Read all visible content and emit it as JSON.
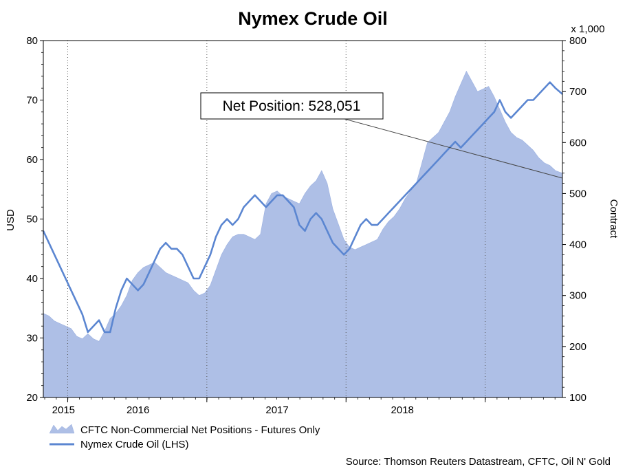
{
  "chart_data": {
    "type": "line",
    "title": "Nymex Crude Oil",
    "y_left_label": "USD",
    "y_right_label": "Contract",
    "y_right_multiplier": "x 1,000",
    "y_left_ticks": [
      "80",
      "70",
      "60",
      "50",
      "40",
      "30",
      "20"
    ],
    "y_right_ticks": [
      "800",
      "700",
      "600",
      "500",
      "400",
      "300",
      "200",
      "100"
    ],
    "x_ticks": [
      "2015",
      "2016",
      "2017",
      "2018"
    ],
    "ylim_left": [
      20,
      80
    ],
    "ylim_right": [
      100,
      800
    ],
    "x_range": [
      2014.82,
      2018.55
    ],
    "grid": "dotted vertical at year boundaries",
    "annotation": "Net Position: 528,051",
    "source": "Source: Thomson Reuters Datastream, CFTC, Oil N' Gold",
    "series": [
      {
        "name": "CFTC Non-Commercial Net Positions - Futures Only",
        "axis": "right",
        "style": "area",
        "color": "#aebfe6",
        "x": [
          2014.82,
          2014.86,
          2014.9,
          2014.94,
          2014.98,
          2015.02,
          2015.06,
          2015.1,
          2015.14,
          2015.18,
          2015.22,
          2015.26,
          2015.3,
          2015.34,
          2015.38,
          2015.42,
          2015.46,
          2015.5,
          2015.54,
          2015.58,
          2015.62,
          2015.66,
          2015.7,
          2015.74,
          2015.78,
          2015.82,
          2015.86,
          2015.9,
          2015.94,
          2015.98,
          2016.02,
          2016.06,
          2016.1,
          2016.14,
          2016.18,
          2016.22,
          2016.26,
          2016.3,
          2016.34,
          2016.38,
          2016.42,
          2016.46,
          2016.5,
          2016.54,
          2016.58,
          2016.62,
          2016.66,
          2016.7,
          2016.74,
          2016.78,
          2016.82,
          2016.86,
          2016.9,
          2016.94,
          2016.98,
          2017.02,
          2017.06,
          2017.1,
          2017.14,
          2017.18,
          2017.22,
          2017.26,
          2017.3,
          2017.34,
          2017.38,
          2017.42,
          2017.46,
          2017.5,
          2017.54,
          2017.58,
          2017.62,
          2017.66,
          2017.7,
          2017.74,
          2017.78,
          2017.82,
          2017.86,
          2017.9,
          2017.94,
          2017.98,
          2018.02,
          2018.06,
          2018.1,
          2018.14,
          2018.18,
          2018.22,
          2018.26,
          2018.3,
          2018.34,
          2018.38,
          2018.42,
          2018.46,
          2018.5,
          2018.55
        ],
        "values": [
          265,
          260,
          250,
          245,
          240,
          235,
          220,
          215,
          225,
          215,
          210,
          230,
          255,
          265,
          280,
          300,
          330,
          345,
          355,
          360,
          365,
          355,
          345,
          340,
          335,
          330,
          325,
          310,
          300,
          305,
          320,
          350,
          380,
          400,
          415,
          420,
          420,
          415,
          410,
          420,
          480,
          500,
          505,
          495,
          490,
          485,
          480,
          500,
          515,
          525,
          545,
          520,
          470,
          440,
          410,
          395,
          390,
          395,
          400,
          405,
          410,
          430,
          445,
          455,
          470,
          490,
          505,
          520,
          560,
          600,
          610,
          620,
          640,
          660,
          690,
          715,
          740,
          720,
          700,
          705,
          710,
          690,
          665,
          640,
          620,
          610,
          605,
          595,
          585,
          570,
          560,
          555,
          545,
          540
        ]
      },
      {
        "name": "Nymex Crude Oil (LHS)",
        "axis": "left",
        "style": "line",
        "color": "#5b86d1",
        "x": [
          2014.82,
          2014.86,
          2014.9,
          2014.94,
          2014.98,
          2015.02,
          2015.06,
          2015.1,
          2015.14,
          2015.18,
          2015.22,
          2015.26,
          2015.3,
          2015.34,
          2015.38,
          2015.42,
          2015.46,
          2015.5,
          2015.54,
          2015.58,
          2015.62,
          2015.66,
          2015.7,
          2015.74,
          2015.78,
          2015.82,
          2015.86,
          2015.9,
          2015.94,
          2015.98,
          2016.02,
          2016.06,
          2016.1,
          2016.14,
          2016.18,
          2016.22,
          2016.26,
          2016.3,
          2016.34,
          2016.38,
          2016.42,
          2016.46,
          2016.5,
          2016.54,
          2016.58,
          2016.62,
          2016.66,
          2016.7,
          2016.74,
          2016.78,
          2016.82,
          2016.86,
          2016.9,
          2016.94,
          2016.98,
          2017.02,
          2017.06,
          2017.1,
          2017.14,
          2017.18,
          2017.22,
          2017.26,
          2017.3,
          2017.34,
          2017.38,
          2017.42,
          2017.46,
          2017.5,
          2017.54,
          2017.58,
          2017.62,
          2017.66,
          2017.7,
          2017.74,
          2017.78,
          2017.82,
          2017.86,
          2017.9,
          2017.94,
          2017.98,
          2018.02,
          2018.06,
          2018.1,
          2018.14,
          2018.18,
          2018.22,
          2018.26,
          2018.3,
          2018.34,
          2018.38,
          2018.42,
          2018.46,
          2018.5,
          2018.55
        ],
        "values": [
          48,
          46,
          44,
          42,
          40,
          38,
          36,
          34,
          31,
          32,
          33,
          31,
          31,
          35,
          38,
          40,
          39,
          38,
          39,
          41,
          43,
          45,
          46,
          45,
          45,
          44,
          42,
          40,
          40,
          42,
          44,
          47,
          49,
          50,
          49,
          50,
          52,
          53,
          54,
          53,
          52,
          53,
          54,
          54,
          53,
          52,
          49,
          48,
          50,
          51,
          50,
          48,
          46,
          45,
          44,
          45,
          47,
          49,
          50,
          49,
          49,
          50,
          51,
          52,
          53,
          54,
          55,
          56,
          57,
          58,
          59,
          60,
          61,
          62,
          63,
          62,
          63,
          64,
          65,
          66,
          67,
          68,
          70,
          68,
          67,
          68,
          69,
          70,
          70,
          71,
          72,
          73,
          72,
          71
        ]
      }
    ],
    "legend": {
      "placement": "bottom-left",
      "entries": [
        "CFTC Non-Commercial Net Positions - Futures Only",
        "Nymex Crude Oil (LHS)"
      ]
    }
  }
}
